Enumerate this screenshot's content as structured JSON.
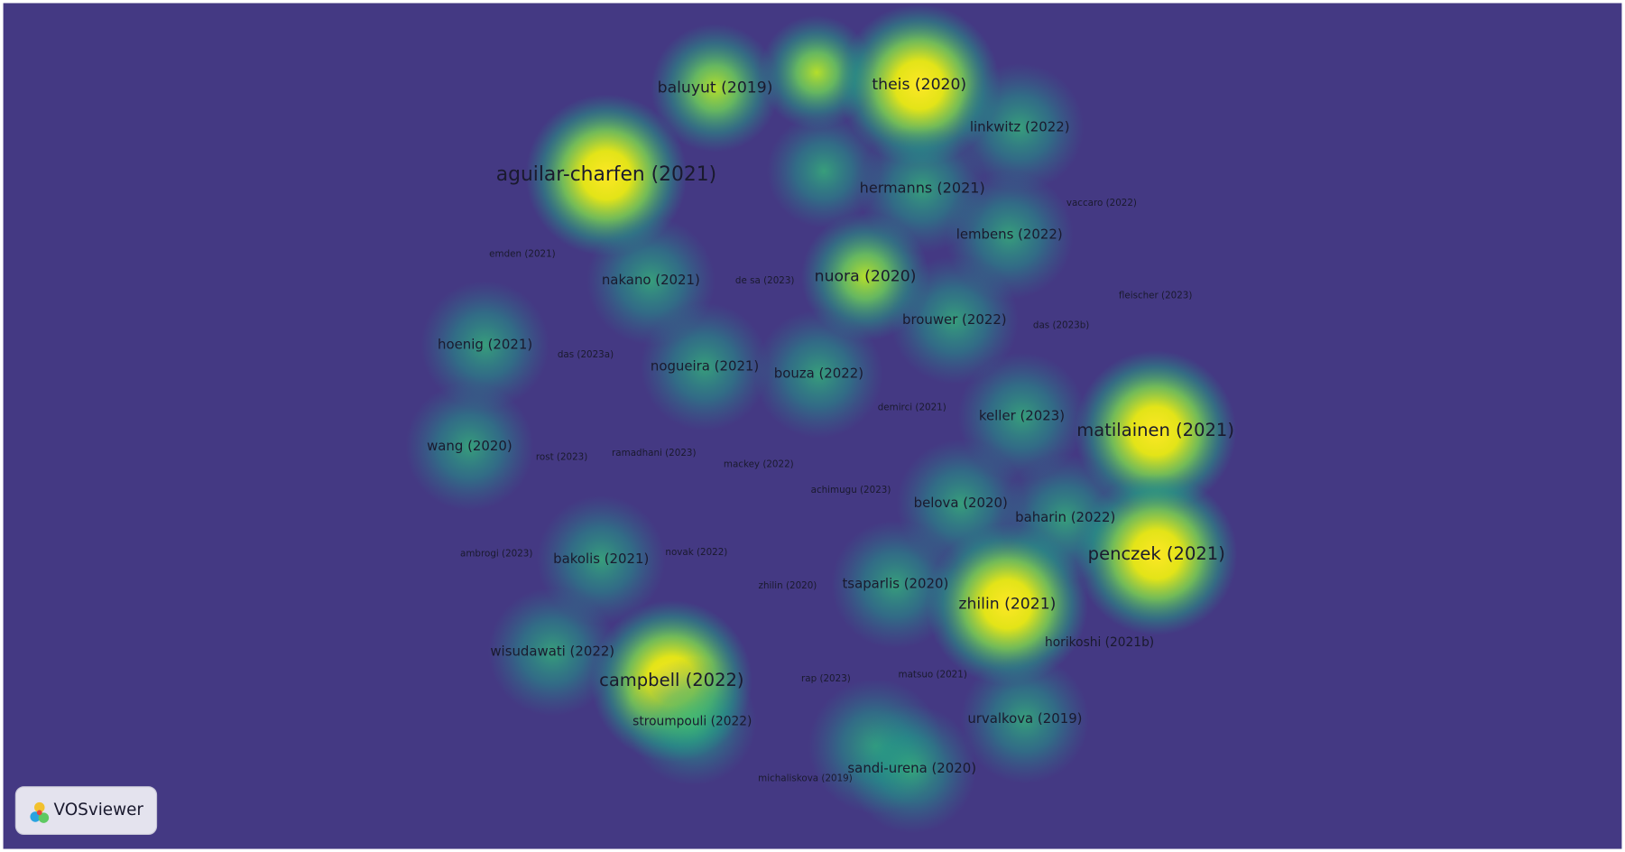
{
  "nodes": [
    {
      "label": "baluyut (2019)"
    },
    {
      "label": "theis (2020)"
    },
    {
      "label": "linkwitz (2022)"
    },
    {
      "label": "aguilar-charfen (2021)"
    },
    {
      "label": "hermanns (2021)"
    },
    {
      "label": "vaccaro (2022)"
    },
    {
      "label": "lembens (2022)"
    },
    {
      "label": "emden (2021)"
    },
    {
      "label": "nakano (2021)"
    },
    {
      "label": "de sa (2023)"
    },
    {
      "label": "nuora (2020)"
    },
    {
      "label": "fleischer (2023)"
    },
    {
      "label": "brouwer (2022)"
    },
    {
      "label": "das (2023b)"
    },
    {
      "label": "hoenig (2021)"
    },
    {
      "label": "das (2023a)"
    },
    {
      "label": "nogueira (2021)"
    },
    {
      "label": "bouza (2022)"
    },
    {
      "label": "demirci (2021)"
    },
    {
      "label": "keller (2023)"
    },
    {
      "label": "matilainen (2021)"
    },
    {
      "label": "wang (2020)"
    },
    {
      "label": "rost (2023)"
    },
    {
      "label": "ramadhani (2023)"
    },
    {
      "label": "mackey (2022)"
    },
    {
      "label": "achimugu (2023)"
    },
    {
      "label": "belova (2020)"
    },
    {
      "label": "baharin (2022)"
    },
    {
      "label": "ambrogi (2023)"
    },
    {
      "label": "bakolis (2021)"
    },
    {
      "label": "novak (2022)"
    },
    {
      "label": "penczek (2021)"
    },
    {
      "label": "zhilin (2020)"
    },
    {
      "label": "tsaparlis (2020)"
    },
    {
      "label": "zhilin (2021)"
    },
    {
      "label": "horikoshi (2021b)"
    },
    {
      "label": "wisudawati (2022)"
    },
    {
      "label": "campbell (2022)"
    },
    {
      "label": "rap (2023)"
    },
    {
      "label": "matsuo (2021)"
    },
    {
      "label": "urvalkova (2019)"
    },
    {
      "label": "stroumpouli (2022)"
    },
    {
      "label": "michaliskova (2019)"
    },
    {
      "label": "sandi-urena (2020)"
    }
  ],
  "logo": "VOSviewer"
}
